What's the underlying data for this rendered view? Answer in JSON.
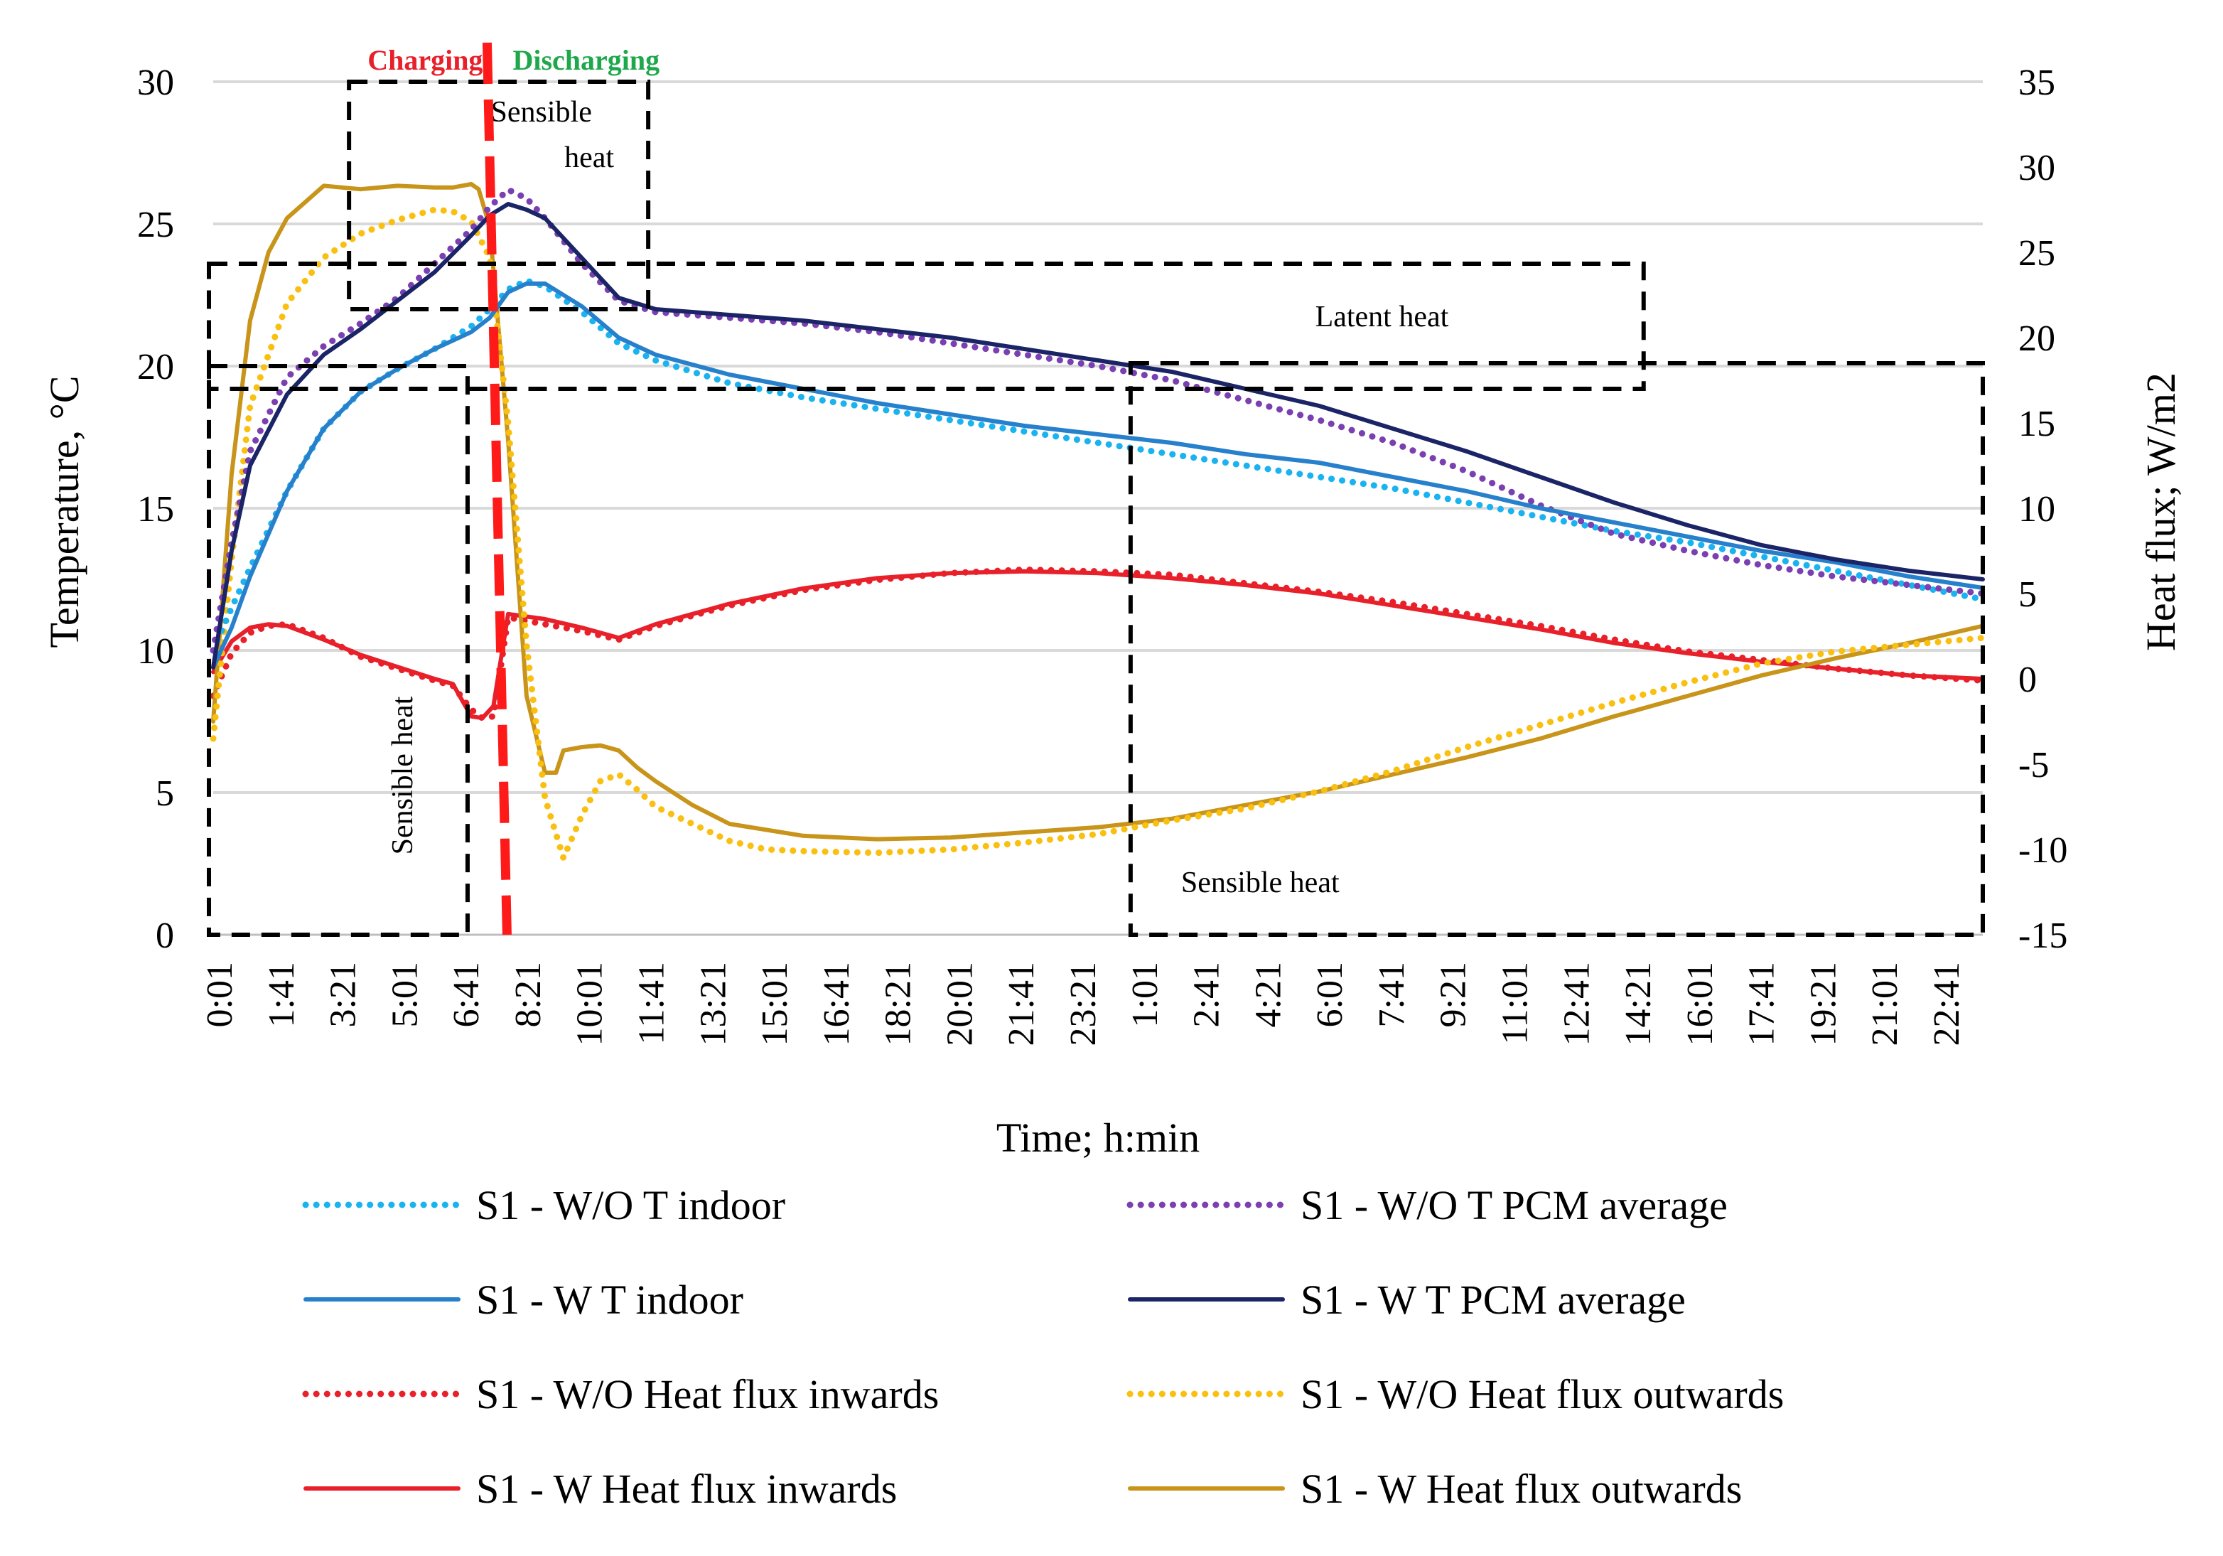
{
  "chart_data": {
    "type": "line",
    "x_tick_labels": [
      "0:01",
      "1:41",
      "3:21",
      "5:01",
      "6:41",
      "8:21",
      "10:01",
      "11:41",
      "13:21",
      "15:01",
      "16:41",
      "18:21",
      "20:01",
      "21:41",
      "23:21",
      "1:01",
      "2:41",
      "4:21",
      "6:01",
      "7:41",
      "9:21",
      "11:01",
      "12:41",
      "14:21",
      "16:01",
      "17:41",
      "19:21",
      "21:01",
      "22:41"
    ],
    "x_range_hours": [
      0,
      48
    ],
    "xlabel": "Time; h:min",
    "ylabel_left": "Temperature, °C",
    "ylabel_right": "Heat flux; W/m2",
    "ylim_left": [
      0,
      30
    ],
    "ylim_right": [
      -15,
      35
    ],
    "left_ticks": [
      0,
      5,
      10,
      15,
      20,
      25,
      30
    ],
    "right_ticks": [
      -15,
      -10,
      -5,
      0,
      5,
      10,
      15,
      20,
      25,
      30,
      35
    ],
    "phase_labels": {
      "charging": "Charging",
      "discharging": "Discharging"
    },
    "phase_colors": {
      "charging": "#e8202a",
      "discharging": "#1fa84b"
    },
    "phase_boundary_hour": 7.7,
    "annotations": [
      {
        "text": "Sensible heat",
        "orientation": "vertical",
        "region_hours": [
          0,
          6.9
        ],
        "region_temp": [
          0,
          20
        ]
      },
      {
        "text": "Sensible\nheat",
        "line1": "Sensible",
        "line2": "heat",
        "region_hours": [
          3.8,
          11.8
        ],
        "region_temp": [
          22,
          30
        ]
      },
      {
        "text": "Latent heat",
        "region_hours": [
          0,
          38.8
        ],
        "region_temp": [
          19.2,
          23.6
        ]
      },
      {
        "text": "Sensible heat",
        "region_hours": [
          25,
          48
        ],
        "region_temp": [
          0,
          20.1
        ]
      }
    ],
    "series": [
      {
        "name": "S1 - W/O T indoor",
        "axis": "left",
        "style": "dotted",
        "color": "#1ab3ef",
        "x": [
          0,
          0.5,
          1,
          2,
          3,
          4,
          5,
          6,
          7,
          7.5,
          8,
          8.5,
          9,
          10,
          11,
          12,
          14,
          16,
          18,
          20,
          22,
          24,
          26,
          28,
          30,
          32,
          34,
          36,
          38,
          40,
          42,
          44,
          46,
          48
        ],
        "y": [
          10,
          11.5,
          12.9,
          15.6,
          17.8,
          19.1,
          19.9,
          20.6,
          21.4,
          22,
          22.7,
          23,
          22.8,
          21.9,
          20.8,
          20.2,
          19.4,
          18.9,
          18.5,
          18.1,
          17.7,
          17.3,
          16.9,
          16.5,
          16.1,
          15.7,
          15.2,
          14.7,
          14.2,
          13.8,
          13.3,
          12.8,
          12.3,
          11.8
        ]
      },
      {
        "name": "S1 - W/O T PCM average",
        "axis": "left",
        "style": "dotted",
        "color": "#7a3fb0",
        "x": [
          0,
          0.5,
          1,
          2,
          3,
          4,
          5,
          6,
          7,
          7.5,
          8,
          8.5,
          9,
          10,
          11,
          12,
          14,
          16,
          18,
          20,
          22,
          24,
          26,
          28,
          30,
          32,
          34,
          36,
          38,
          40,
          42,
          44,
          46,
          48
        ],
        "y": [
          10,
          13.8,
          17,
          19.6,
          20.7,
          21.5,
          22.4,
          23.6,
          24.8,
          25.6,
          26.2,
          25.9,
          25.2,
          23.6,
          22.3,
          21.9,
          21.7,
          21.5,
          21.2,
          20.8,
          20.4,
          20,
          19.5,
          18.8,
          18.1,
          17.3,
          16.3,
          15.1,
          14.1,
          13.5,
          13,
          12.6,
          12.3,
          12
        ]
      },
      {
        "name": "S1 - W T indoor",
        "axis": "left",
        "style": "solid",
        "color": "#2780cc",
        "x": [
          0,
          0.5,
          1,
          2,
          3,
          4,
          5,
          6,
          7,
          7.5,
          8,
          8.5,
          9,
          10,
          11,
          12,
          14,
          16,
          18,
          20,
          22,
          24,
          26,
          28,
          30,
          32,
          34,
          36,
          38,
          40,
          42,
          44,
          46,
          48
        ],
        "y": [
          9.4,
          10.8,
          12.6,
          15.6,
          17.8,
          19.1,
          19.9,
          20.6,
          21.2,
          21.7,
          22.6,
          22.9,
          22.9,
          22.1,
          21,
          20.4,
          19.7,
          19.2,
          18.7,
          18.3,
          17.9,
          17.6,
          17.3,
          16.9,
          16.6,
          16.1,
          15.6,
          15,
          14.5,
          14,
          13.5,
          13.1,
          12.6,
          12.2
        ]
      },
      {
        "name": "S1 - W T PCM average",
        "axis": "left",
        "style": "solid",
        "color": "#1b2466",
        "x": [
          0,
          0.5,
          1,
          2,
          3,
          4,
          5,
          6,
          7,
          7.5,
          8,
          8.5,
          9,
          10,
          11,
          12,
          14,
          16,
          18,
          20,
          22,
          24,
          26,
          28,
          30,
          32,
          34,
          36,
          38,
          40,
          42,
          44,
          46,
          48
        ],
        "y": [
          9.4,
          13.5,
          16.5,
          19,
          20.4,
          21.3,
          22.3,
          23.3,
          24.6,
          25.3,
          25.7,
          25.5,
          25.2,
          23.8,
          22.4,
          22,
          21.8,
          21.6,
          21.3,
          21,
          20.6,
          20.2,
          19.8,
          19.2,
          18.6,
          17.8,
          17,
          16.1,
          15.2,
          14.4,
          13.7,
          13.2,
          12.8,
          12.5
        ]
      },
      {
        "name": "S1 - W/O Heat flux inwards",
        "axis": "right",
        "style": "dotted",
        "color": "#e8202a",
        "x": [
          0,
          0.5,
          1,
          1.5,
          2,
          3,
          4,
          5,
          6,
          6.5,
          7,
          7.3,
          7.6,
          8,
          9,
          10,
          11,
          12,
          14,
          16,
          18,
          20,
          22,
          24,
          26,
          28,
          30,
          32,
          34,
          36,
          38,
          40,
          42,
          44,
          46,
          48
        ],
        "y": [
          -1,
          1.5,
          2.7,
          3.1,
          3.2,
          2.4,
          1.3,
          0.6,
          -0.1,
          -0.4,
          -1.8,
          -2.3,
          -2.2,
          3.6,
          3.2,
          2.8,
          2.3,
          3.1,
          4.3,
          5.2,
          5.8,
          6.2,
          6.4,
          6.3,
          6.1,
          5.6,
          5.1,
          4.5,
          3.8,
          3.1,
          2.3,
          1.6,
          1.1,
          0.6,
          0.2,
          -0.1
        ]
      },
      {
        "name": "S1 - W/O Heat flux outwards",
        "axis": "right",
        "style": "dotted",
        "color": "#f9c012",
        "x": [
          0,
          0.5,
          1,
          2,
          3,
          4,
          5,
          6,
          6.5,
          7,
          7.5,
          8,
          8.5,
          9,
          9.5,
          10,
          10.5,
          11,
          11.5,
          12,
          14,
          15,
          16,
          18,
          20,
          22,
          24,
          26,
          28,
          30,
          32,
          34,
          36,
          38,
          40,
          42,
          44,
          46,
          48
        ],
        "y": [
          -3.5,
          7,
          16,
          22,
          24.7,
          26.1,
          26.9,
          27.5,
          27.4,
          26.8,
          24.7,
          15,
          2,
          -7,
          -10.5,
          -8,
          -6,
          -5.6,
          -6.5,
          -7.5,
          -9.5,
          -10,
          -10.1,
          -10.2,
          -10,
          -9.6,
          -9.1,
          -8.3,
          -7.6,
          -6.6,
          -5.4,
          -4,
          -2.7,
          -1.4,
          -0.2,
          0.9,
          1.6,
          2,
          2.4
        ]
      },
      {
        "name": "S1 - W Heat flux inwards",
        "axis": "right",
        "style": "solid",
        "color": "#e8202a",
        "x": [
          0,
          0.5,
          1,
          1.5,
          2,
          3,
          4,
          5,
          6,
          6.5,
          7,
          7.3,
          7.6,
          8,
          9,
          10,
          11,
          12,
          14,
          16,
          18,
          20,
          22,
          24,
          26,
          28,
          30,
          32,
          34,
          36,
          38,
          40,
          42,
          44,
          46,
          48
        ],
        "y": [
          0.4,
          2.2,
          3,
          3.2,
          3.1,
          2.3,
          1.4,
          0.7,
          0,
          -0.3,
          -2.2,
          -2.3,
          -1.6,
          3.8,
          3.5,
          3,
          2.4,
          3.2,
          4.4,
          5.3,
          5.9,
          6.2,
          6.3,
          6.2,
          5.9,
          5.5,
          5,
          4.3,
          3.6,
          2.9,
          2.1,
          1.5,
          1,
          0.6,
          0.2,
          0
        ]
      },
      {
        "name": "S1 - W Heat flux outwards",
        "axis": "right",
        "style": "solid",
        "color": "#c8941a",
        "x": [
          0,
          0.5,
          1,
          1.5,
          2,
          3,
          4,
          5,
          6,
          6.5,
          7,
          7.2,
          7.5,
          8,
          8.5,
          9,
          9.3,
          9.5,
          10,
          10.5,
          11,
          11.5,
          12,
          13,
          14,
          16,
          18,
          20,
          22,
          24,
          26,
          28,
          30,
          32,
          34,
          36,
          38,
          40,
          42,
          44,
          46,
          48
        ],
        "y": [
          -2.5,
          12,
          21,
          25,
          27,
          28.9,
          28.7,
          28.9,
          28.8,
          28.8,
          29,
          28.7,
          26.5,
          14,
          -1,
          -5.5,
          -5.5,
          -4.2,
          -4,
          -3.9,
          -4.2,
          -5.2,
          -6,
          -7.4,
          -8.5,
          -9.2,
          -9.4,
          -9.3,
          -9,
          -8.7,
          -8.2,
          -7.4,
          -6.6,
          -5.6,
          -4.6,
          -3.5,
          -2.2,
          -1,
          0.2,
          1.2,
          2.1,
          3.1
        ]
      }
    ]
  }
}
